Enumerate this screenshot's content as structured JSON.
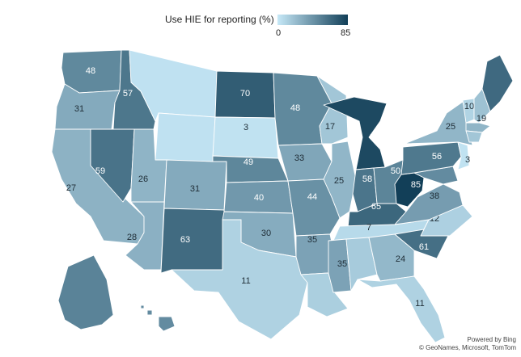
{
  "legend": {
    "title": "Use HIE for reporting (%)",
    "min_label": "0",
    "max_label": "85",
    "min_value": 0,
    "max_value": 85,
    "color_low": "#c6e8f7",
    "color_high": "#123f58"
  },
  "attribution": {
    "line1": "Powered by Bing",
    "line2": "© GeoNames, Microsoft, TomTom"
  },
  "states": [
    {
      "abbr": "WA",
      "value": 48
    },
    {
      "abbr": "OR",
      "value": 31
    },
    {
      "abbr": "CA",
      "value": 27
    },
    {
      "abbr": "NV",
      "value": 59
    },
    {
      "abbr": "ID",
      "value": 57
    },
    {
      "abbr": "MT",
      "value": null
    },
    {
      "abbr": "WY",
      "value": null
    },
    {
      "abbr": "UT",
      "value": 26
    },
    {
      "abbr": "AZ",
      "value": 28
    },
    {
      "abbr": "CO",
      "value": 31
    },
    {
      "abbr": "NM",
      "value": 63
    },
    {
      "abbr": "ND",
      "value": 70
    },
    {
      "abbr": "SD",
      "value": 3
    },
    {
      "abbr": "NE",
      "value": 49
    },
    {
      "abbr": "KS",
      "value": 40
    },
    {
      "abbr": "OK",
      "value": 30
    },
    {
      "abbr": "TX",
      "value": 11
    },
    {
      "abbr": "MN",
      "value": 48
    },
    {
      "abbr": "IA",
      "value": 33
    },
    {
      "abbr": "MO",
      "value": 44
    },
    {
      "abbr": "AR",
      "value": 35
    },
    {
      "abbr": "LA",
      "value": null
    },
    {
      "abbr": "WI",
      "value": 17
    },
    {
      "abbr": "IL",
      "value": 25
    },
    {
      "abbr": "MI",
      "value": 80
    },
    {
      "abbr": "IN",
      "value": 58
    },
    {
      "abbr": "OH",
      "value": 50
    },
    {
      "abbr": "KY",
      "value": 65
    },
    {
      "abbr": "TN",
      "value": 7
    },
    {
      "abbr": "MS",
      "value": 35
    },
    {
      "abbr": "AL",
      "value": null
    },
    {
      "abbr": "GA",
      "value": 24
    },
    {
      "abbr": "FL",
      "value": 11
    },
    {
      "abbr": "SC",
      "value": 61
    },
    {
      "abbr": "NC",
      "value": 12
    },
    {
      "abbr": "VA",
      "value": 38
    },
    {
      "abbr": "WV",
      "value": 85
    },
    {
      "abbr": "MD",
      "value": null
    },
    {
      "abbr": "PA",
      "value": 56
    },
    {
      "abbr": "NY",
      "value": 25
    },
    {
      "abbr": "NJ",
      "value": 3
    },
    {
      "abbr": "VT",
      "value": 10
    },
    {
      "abbr": "NH",
      "value": 19
    },
    {
      "abbr": "ME",
      "value": null
    },
    {
      "abbr": "MA",
      "value": null
    },
    {
      "abbr": "CT",
      "value": null
    },
    {
      "abbr": "AK",
      "value": null
    },
    {
      "abbr": "HI",
      "value": null
    }
  ]
}
